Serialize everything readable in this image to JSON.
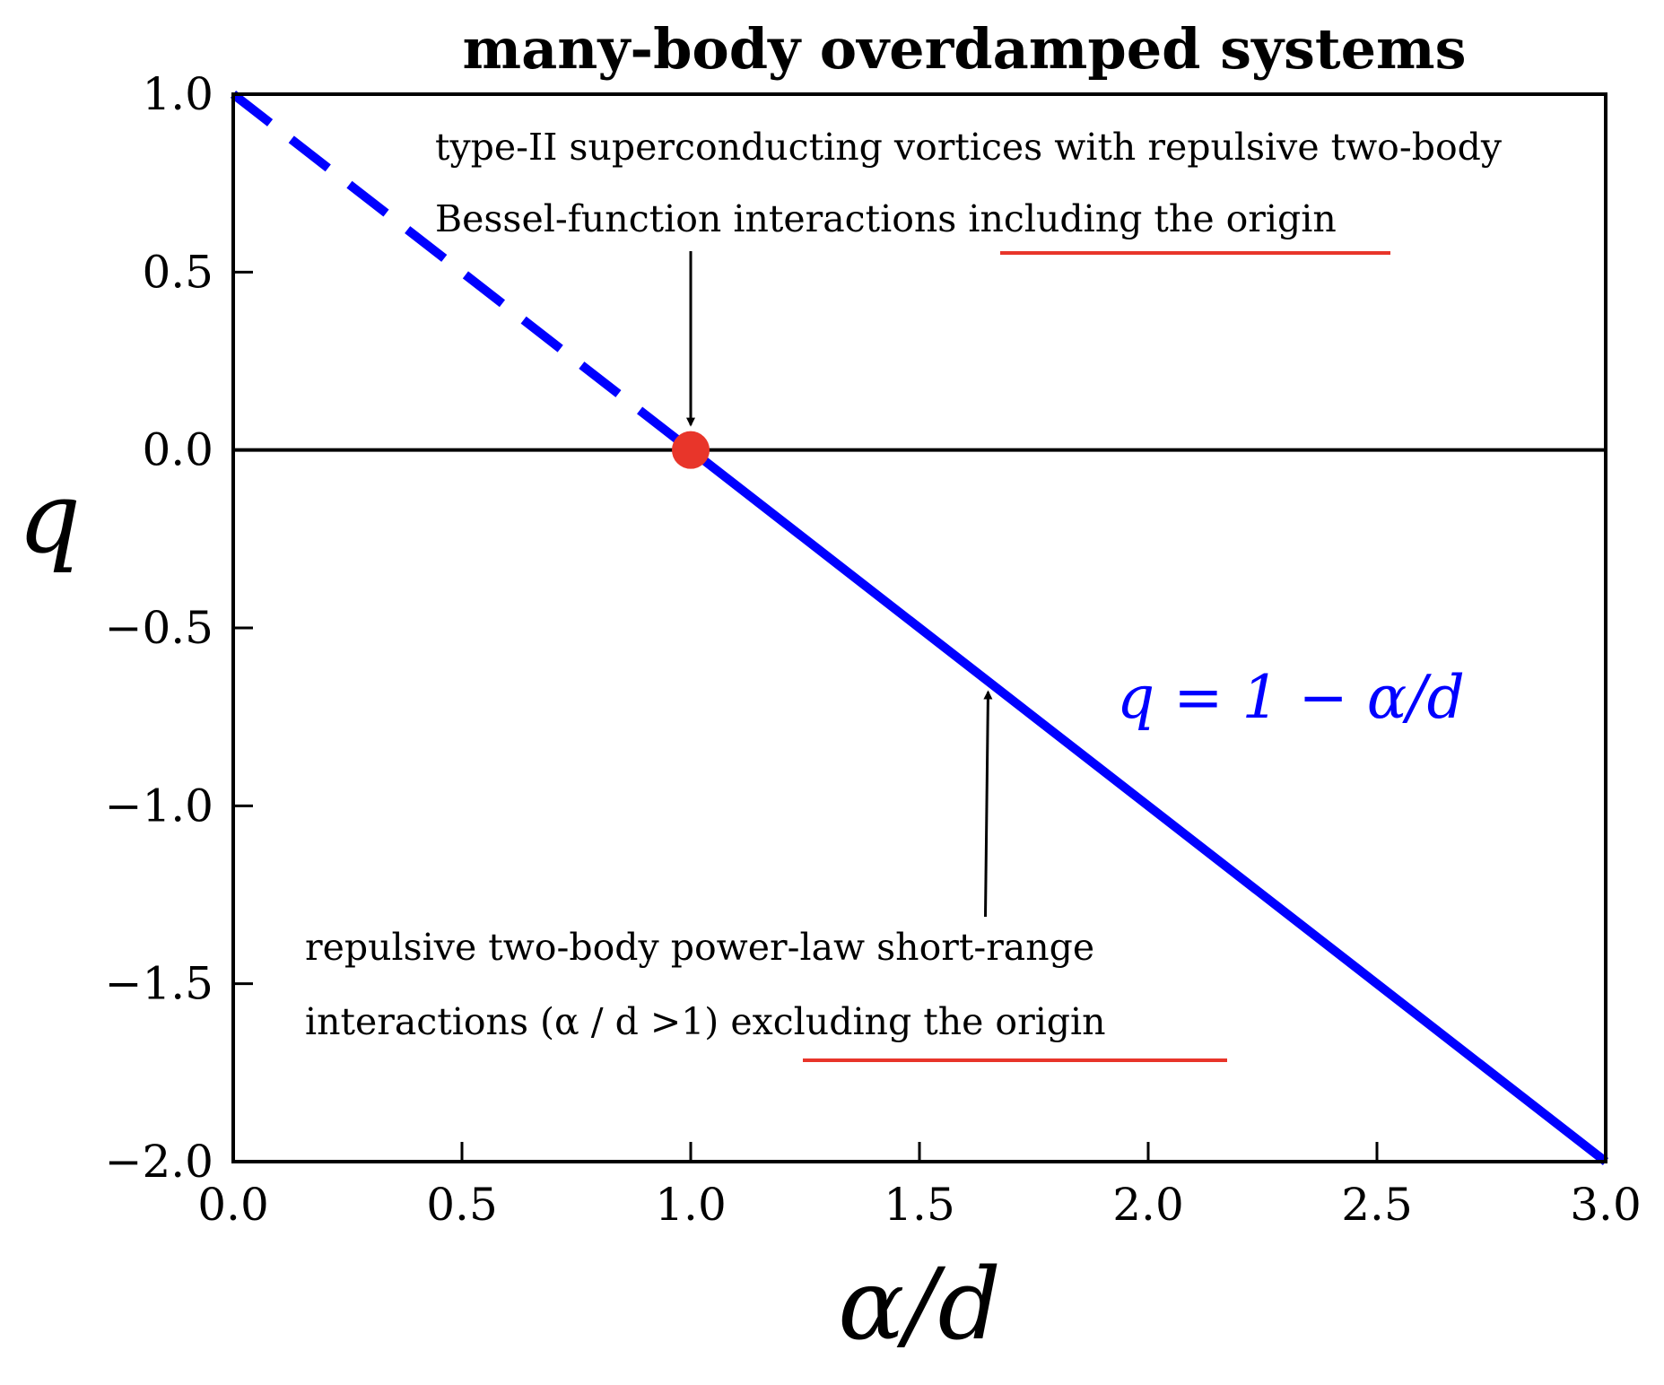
{
  "chart_data": {
    "type": "line",
    "title": "many-body overdamped systems",
    "xlabel": "α/d",
    "ylabel": "q",
    "xlim": [
      0.0,
      3.0
    ],
    "ylim": [
      -2.0,
      1.0
    ],
    "xticks": [
      "0.0",
      "0.5",
      "1.0",
      "1.5",
      "2.0",
      "2.5",
      "3.0"
    ],
    "xtick_values": [
      0.0,
      0.5,
      1.0,
      1.5,
      2.0,
      2.5,
      3.0
    ],
    "yticks": [
      "1.0",
      "0.5",
      "0.0",
      "−0.5",
      "−1.0",
      "−1.5",
      "−2.0"
    ],
    "ytick_values": [
      1.0,
      0.5,
      0.0,
      -0.5,
      -1.0,
      -1.5,
      -2.0
    ],
    "series": [
      {
        "name": "q = 1 − α/d (dashed)",
        "style": "dashed",
        "x": [
          0.0,
          1.0
        ],
        "y": [
          1.0,
          0.0
        ]
      },
      {
        "name": "q = 1 − α/d (solid)",
        "style": "solid",
        "x": [
          1.0,
          3.0
        ],
        "y": [
          0.0,
          -2.0
        ]
      }
    ],
    "zero_line": 0.0,
    "marker_point": {
      "x": 1.0,
      "y": 0.0
    },
    "line_color": "#0000ff",
    "marker_color": "#e8352a",
    "underline_color": "#e8352a",
    "formula_label": "q = 1 − α/d",
    "annotations": {
      "top_line1": "type-II superconducting vortices with repulsive two-body",
      "top_line2_plain": "Bessel-function interactions ",
      "top_line2_underlined": "including the origin",
      "top_arrow_to": {
        "x": 1.0,
        "y": 0.0
      },
      "bottom_line1": "repulsive two-body power-law short-range",
      "bottom_line2_plain": "interactions (α / d >1) ",
      "bottom_line2_underlined": "excluding the origin",
      "bottom_arrow_to": {
        "x": 1.65,
        "y": -0.65
      }
    }
  }
}
